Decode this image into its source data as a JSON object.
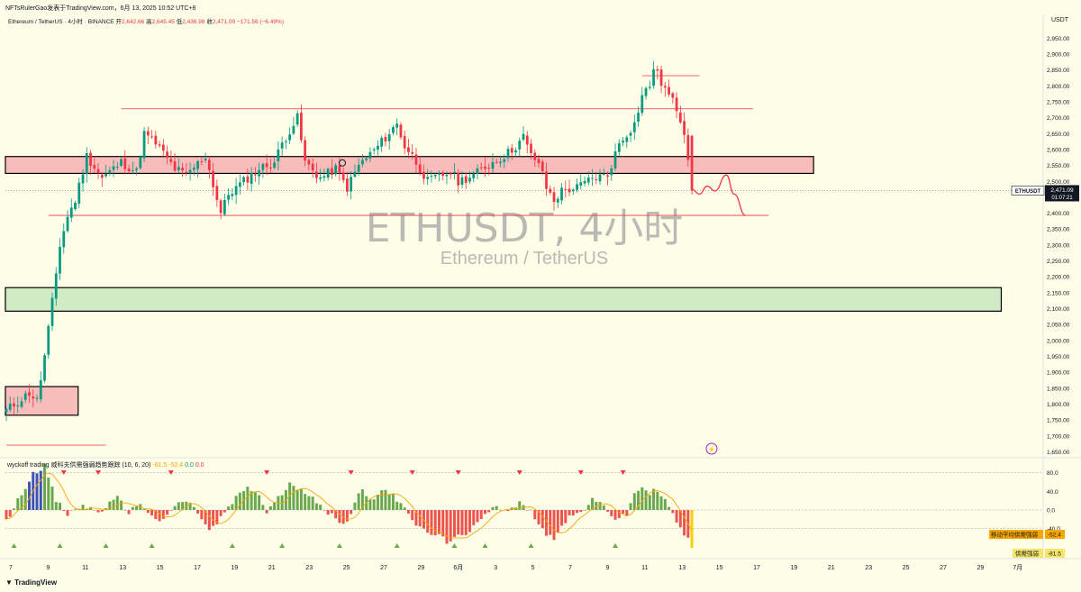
{
  "header": {
    "text": "NFTsRulerGao发表于TradingView.com，6月 13, 2025 10:52 UTC+8"
  },
  "symbol": {
    "name": "Ethereum / TetherUS · 4小时 · BINANCE",
    "open_label": "开",
    "open": "2,642.66",
    "high_label": "高",
    "high": "2,645.45",
    "low_label": "低",
    "low": "2,436.98",
    "close_label": "收",
    "close": "2,471.09",
    "change": "−171.56 (−6.49%)"
  },
  "currency": "USDT",
  "watermark": {
    "title": "ETHUSDT, 4小时",
    "subtitle": "Ethereum / TetherUS"
  },
  "price_tag": {
    "symbol": "ETHUSDT",
    "price": "2,471.09",
    "countdown": "01:07:21"
  },
  "indicator": {
    "title": "wyckoff trading 威科夫供需强弱趋势跟踪 (10, 6, 20)",
    "v1": "-81.5",
    "v2": "-52.4",
    "v3": "0.0",
    "v4": "0.0",
    "ma_tag": {
      "label": "移动平均供需强弱",
      "value": "-52.4"
    },
    "sd_tag": {
      "label": "供需强弱",
      "value": "-81.5"
    }
  },
  "brand": "TradingView",
  "colors": {
    "bg": "#fdfde8",
    "up": "#089981",
    "down": "#f23645",
    "resistance": "#f7b6b6",
    "support": "#cde8c1"
  },
  "chart_data": [
    {
      "type": "candlestick",
      "title": "Ethereum / TetherUS · 4小时 · BINANCE",
      "ylim": [
        1637,
        2985
      ],
      "y_ticks": [
        "2,950.00",
        "2,900.00",
        "2,850.00",
        "2,800.00",
        "2,750.00",
        "2,700.00",
        "2,650.00",
        "2,600.00",
        "2,550.00",
        "2,500.00",
        "2,450.00",
        "2,400.00",
        "2,350.00",
        "2,300.00",
        "2,250.00",
        "2,200.00",
        "2,150.00",
        "2,100.00",
        "2,050.00",
        "2,000.00",
        "1,950.00",
        "1,900.00",
        "1,850.00",
        "1,800.00",
        "1,750.00",
        "1,700.00",
        "1,650.00"
      ],
      "x_ticks": [
        "7",
        "9",
        "11",
        "13",
        "15",
        "17",
        "19",
        "21",
        "23",
        "25",
        "27",
        "29",
        "6月",
        "3",
        "5",
        "7",
        "9",
        "11",
        "13",
        "15",
        "17",
        "19",
        "21",
        "23",
        "25",
        "27",
        "29",
        "7月"
      ],
      "last_price": 2471.09,
      "path": [
        [
          0,
          1780
        ],
        [
          6,
          1835
        ],
        [
          8,
          1810
        ],
        [
          10,
          1950
        ],
        [
          12,
          2120
        ],
        [
          14,
          2300
        ],
        [
          16,
          2390
        ],
        [
          18,
          2440
        ],
        [
          21,
          2580
        ],
        [
          25,
          2510
        ],
        [
          30,
          2560
        ],
        [
          34,
          2530
        ],
        [
          36,
          2650
        ],
        [
          39,
          2620
        ],
        [
          44,
          2540
        ],
        [
          47,
          2520
        ],
        [
          52,
          2580
        ],
        [
          56,
          2400
        ],
        [
          58,
          2460
        ],
        [
          62,
          2500
        ],
        [
          66,
          2540
        ],
        [
          70,
          2560
        ],
        [
          72,
          2620
        ],
        [
          76,
          2700
        ],
        [
          78,
          2560
        ],
        [
          82,
          2510
        ],
        [
          86,
          2540
        ],
        [
          89,
          2480
        ],
        [
          92,
          2550
        ],
        [
          97,
          2610
        ],
        [
          102,
          2680
        ],
        [
          104,
          2610
        ],
        [
          106,
          2580
        ],
        [
          110,
          2500
        ],
        [
          116,
          2530
        ],
        [
          118,
          2500
        ],
        [
          122,
          2520
        ],
        [
          127,
          2560
        ],
        [
          130,
          2580
        ],
        [
          133,
          2610
        ],
        [
          135,
          2640
        ],
        [
          137,
          2580
        ],
        [
          139,
          2560
        ],
        [
          141,
          2480
        ],
        [
          143,
          2440
        ],
        [
          145,
          2470
        ],
        [
          149,
          2480
        ],
        [
          153,
          2510
        ],
        [
          157,
          2520
        ],
        [
          160,
          2620
        ],
        [
          164,
          2680
        ],
        [
          166,
          2770
        ],
        [
          168,
          2800
        ],
        [
          169,
          2860
        ],
        [
          171,
          2810
        ],
        [
          173,
          2770
        ],
        [
          175,
          2730
        ],
        [
          177,
          2660
        ],
        [
          178,
          2575
        ],
        [
          179,
          2480
        ]
      ],
      "zones": [
        {
          "name": "resistance",
          "y1": 2525,
          "y2": 2578,
          "x1": 0,
          "x2": 211
        },
        {
          "name": "support",
          "y1": 2092,
          "y2": 2166,
          "x1": 0,
          "x2": 260
        },
        {
          "name": "base",
          "y1": 1765,
          "y2": 1855,
          "x1": 0,
          "x2": 19
        }
      ],
      "lines": [
        {
          "y": 2728,
          "x1": 30,
          "x2": 195
        },
        {
          "y": 2393,
          "x1": 11,
          "x2": 199
        },
        {
          "y": 2832,
          "x1": 166,
          "x2": 181
        },
        {
          "y": 1671,
          "x1": 0,
          "x2": 26
        }
      ],
      "projection": [
        [
          179,
          2475
        ],
        [
          181,
          2460
        ],
        [
          183,
          2485
        ],
        [
          185,
          2470
        ],
        [
          188,
          2520
        ],
        [
          190,
          2460
        ],
        [
          193,
          2393
        ]
      ]
    },
    {
      "type": "bar",
      "title": "wyckoff trading 威科夫供需强弱趋势跟踪 (10, 6, 20)",
      "ylim": [
        -95,
        95
      ],
      "y_ticks": [
        "80.0",
        "40.0",
        "0.0",
        "-40.0"
      ],
      "keypoints": [
        [
          0,
          -25
        ],
        [
          4,
          35
        ],
        [
          7,
          80
        ],
        [
          10,
          95
        ],
        [
          13,
          20
        ],
        [
          16,
          -10
        ],
        [
          20,
          10
        ],
        [
          24,
          -5
        ],
        [
          29,
          25
        ],
        [
          32,
          -5
        ],
        [
          35,
          15
        ],
        [
          38,
          -15
        ],
        [
          41,
          -25
        ],
        [
          44,
          10
        ],
        [
          47,
          20
        ],
        [
          50,
          -5
        ],
        [
          53,
          -45
        ],
        [
          55,
          -30
        ],
        [
          57,
          -5
        ],
        [
          60,
          25
        ],
        [
          63,
          50
        ],
        [
          66,
          30
        ],
        [
          68,
          -5
        ],
        [
          71,
          25
        ],
        [
          74,
          55
        ],
        [
          77,
          45
        ],
        [
          80,
          30
        ],
        [
          83,
          -5
        ],
        [
          86,
          -15
        ],
        [
          88,
          -30
        ],
        [
          90,
          -10
        ],
        [
          91,
          20
        ],
        [
          93,
          45
        ],
        [
          95,
          20
        ],
        [
          98,
          45
        ],
        [
          101,
          30
        ],
        [
          104,
          10
        ],
        [
          106,
          -20
        ],
        [
          108,
          -40
        ],
        [
          110,
          -50
        ],
        [
          113,
          -55
        ],
        [
          115,
          -70
        ],
        [
          117,
          -55
        ],
        [
          119,
          -60
        ],
        [
          121,
          -50
        ],
        [
          123,
          -25
        ],
        [
          125,
          -5
        ],
        [
          128,
          10
        ],
        [
          131,
          -5
        ],
        [
          134,
          15
        ],
        [
          137,
          -5
        ],
        [
          139,
          -25
        ],
        [
          141,
          -55
        ],
        [
          143,
          -60
        ],
        [
          145,
          -30
        ],
        [
          147,
          -15
        ],
        [
          150,
          -5
        ],
        [
          153,
          20
        ],
        [
          156,
          10
        ],
        [
          159,
          -20
        ],
        [
          162,
          -10
        ],
        [
          164,
          35
        ],
        [
          166,
          50
        ],
        [
          168,
          35
        ],
        [
          170,
          45
        ],
        [
          172,
          20
        ],
        [
          174,
          -10
        ],
        [
          176,
          -40
        ],
        [
          178,
          -65
        ],
        [
          179,
          -81.5
        ]
      ],
      "ma_value": -52.4,
      "sd_value": -81.5,
      "down_markers": [
        15,
        24,
        43,
        68,
        90,
        106,
        118,
        134,
        150,
        161
      ],
      "up_markers": [
        2,
        14,
        26,
        38,
        59,
        72,
        87,
        102,
        117,
        125,
        137,
        159
      ]
    }
  ]
}
